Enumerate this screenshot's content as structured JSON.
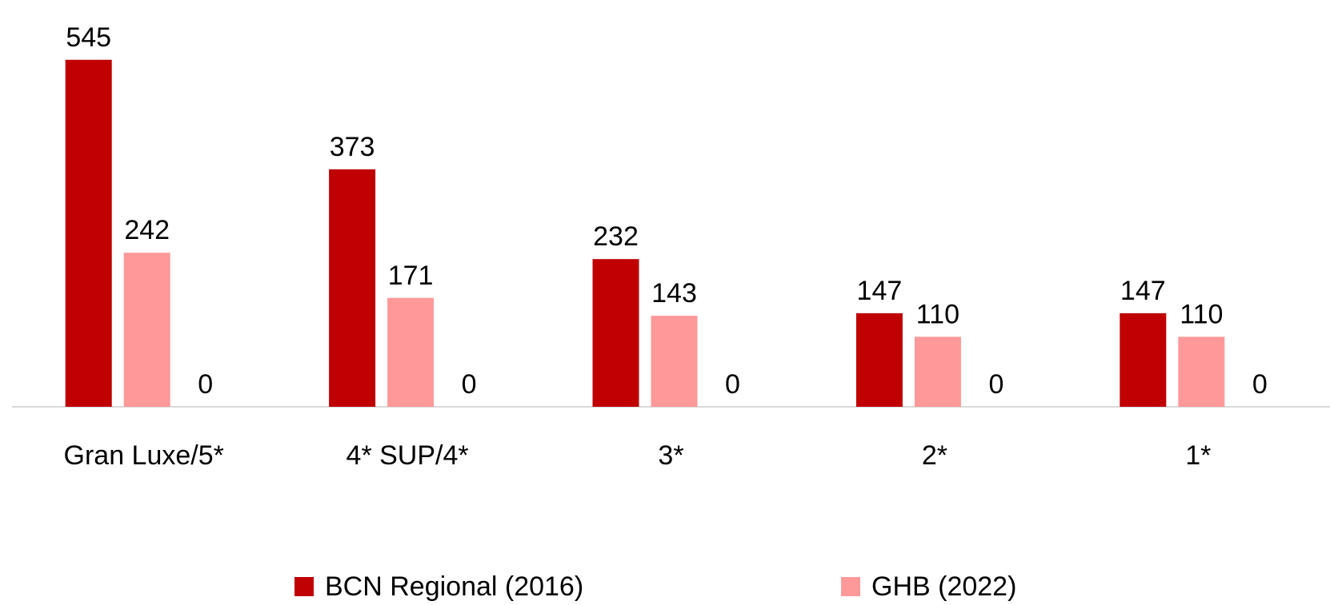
{
  "chart_data": {
    "type": "bar",
    "categories": [
      "Gran Luxe/5*",
      "4* SUP/4*",
      "3*",
      "2*",
      "1*"
    ],
    "series": [
      {
        "name": "BCN Regional (2016)",
        "color": "#c00000",
        "values": [
          545,
          373,
          232,
          147,
          147
        ]
      },
      {
        "name": "GHB (2022)",
        "color": "#ff9999",
        "values": [
          242,
          171,
          143,
          110,
          110
        ]
      },
      {
        "values": [
          0,
          0,
          0,
          0,
          0
        ]
      }
    ],
    "ylim": [
      0,
      600
    ],
    "grid": false
  }
}
